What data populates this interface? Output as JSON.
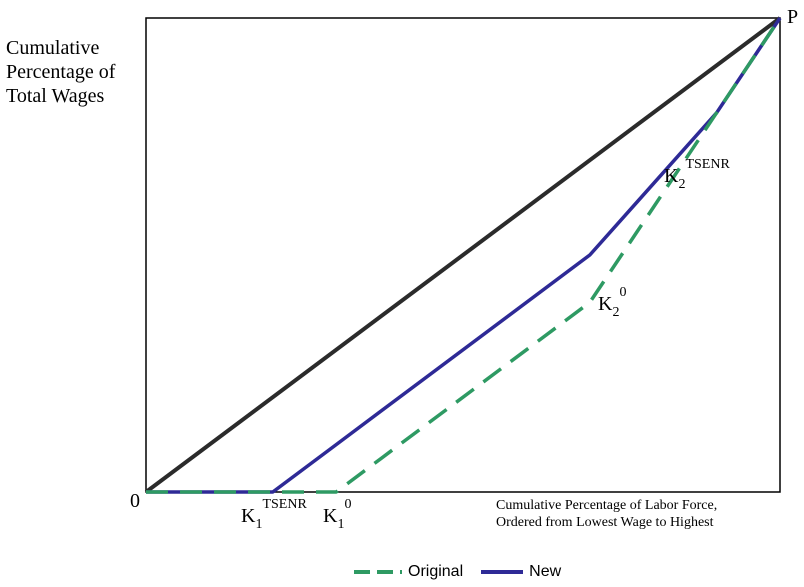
{
  "chart_data": {
    "type": "line",
    "ylabel_lines": [
      "Cumulative",
      "Percentage of",
      "Total Wages"
    ],
    "xlabel_lines": [
      "Cumulative Percentage of Labor Force,",
      "Ordered from Lowest Wage to Highest"
    ],
    "origin_label": "0",
    "endpoint_label": "P",
    "xlim": [
      0,
      100
    ],
    "ylim": [
      0,
      100
    ],
    "series": [
      {
        "name": "",
        "key": "equality",
        "color": "#2b2b2b",
        "dash": "solid",
        "points": [
          [
            0,
            0
          ],
          [
            100,
            100
          ]
        ]
      },
      {
        "name": "New",
        "key": "new",
        "color": "#2e2a96",
        "dash": "solid",
        "points": [
          [
            0,
            0
          ],
          [
            20,
            0
          ],
          [
            30,
            10
          ],
          [
            70,
            50
          ],
          [
            90,
            80
          ],
          [
            100,
            100
          ]
        ]
      },
      {
        "name": "Original",
        "key": "original",
        "color": "#2e9a63",
        "dash": "dashed",
        "points": [
          [
            0,
            0
          ],
          [
            30,
            0
          ],
          [
            35,
            5
          ],
          [
            70,
            40
          ],
          [
            80,
            60
          ],
          [
            90,
            80
          ],
          [
            100,
            100
          ]
        ]
      }
    ],
    "annotations": [
      {
        "key": "k1_tsenr",
        "base": "K",
        "sub": "1",
        "sup": "TSENR"
      },
      {
        "key": "k1_0",
        "base": "K",
        "sub": "1",
        "sup": "0"
      },
      {
        "key": "k2_0",
        "base": "K",
        "sub": "2",
        "sup": "0"
      },
      {
        "key": "k2_tsenr",
        "base": "K",
        "sub": "2",
        "sup": "TSENR"
      }
    ],
    "legend": {
      "position": "bottom-center",
      "items": [
        {
          "label": "Original",
          "color": "#2e9a63",
          "dash": "dashed"
        },
        {
          "label": "New",
          "color": "#2e2a96",
          "dash": "solid"
        }
      ]
    },
    "grid": false
  }
}
